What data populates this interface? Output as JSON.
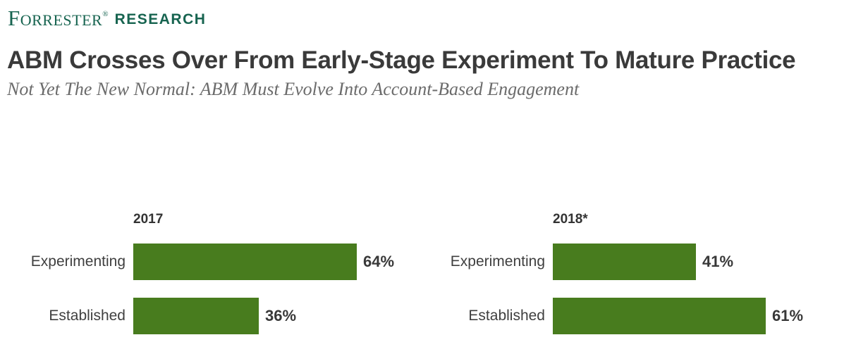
{
  "logo": {
    "brand": "Forrester",
    "reg_mark": "®",
    "suffix": "RESEARCH"
  },
  "header": {
    "title": "ABM Crosses Over From Early-Stage Experiment To Mature Practice",
    "subtitle": "Not Yet The New Normal: ABM Must Evolve Into Account-Based Engagement"
  },
  "colors": {
    "logo_green": "#176450",
    "bar_green": "#487c1e",
    "title_gray": "#3a3a3a",
    "subtitle_gray": "#6b6b6b"
  },
  "chart_data": [
    {
      "type": "bar",
      "orientation": "horizontal",
      "title": "2017",
      "categories": [
        "Experimenting",
        "Established"
      ],
      "values": [
        64,
        36
      ],
      "value_labels": [
        "64%",
        "36%"
      ],
      "value_suffix": "%",
      "xlim": [
        0,
        100
      ],
      "grid": false,
      "legend": "none",
      "bar_color": "#487c1e"
    },
    {
      "type": "bar",
      "orientation": "horizontal",
      "title": "2018*",
      "categories": [
        "Experimenting",
        "Established"
      ],
      "values": [
        41,
        61
      ],
      "value_labels": [
        "41%",
        "61%"
      ],
      "value_suffix": "%",
      "xlim": [
        0,
        100
      ],
      "grid": false,
      "legend": "none",
      "bar_color": "#487c1e"
    }
  ]
}
